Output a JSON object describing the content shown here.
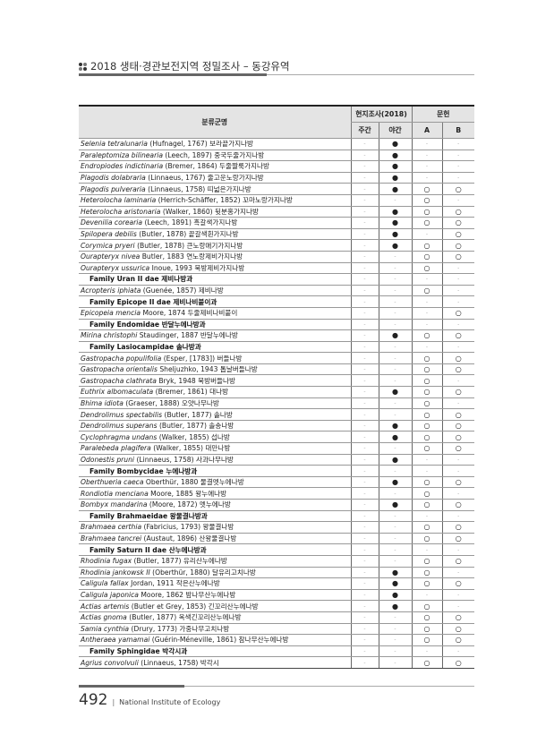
{
  "header": {
    "title": "2018 생태·경관보전지역  정밀조사 – 동강유역"
  },
  "table": {
    "col_name": "분류군명",
    "group_survey": "현지조사(2018)",
    "group_literature": "문헌",
    "col_day": "주간",
    "col_night": "야간",
    "col_a": "A",
    "col_b": "B",
    "rows": [
      {
        "sci": "Selenia tetralunaria",
        "auth": " (Hufnagel, 1767) 보라끝가지나방",
        "v": [
          "-",
          "●",
          "-",
          "-"
        ]
      },
      {
        "sci": "Paraleptomiza bilinearia",
        "auth": " (Leech, 1897) 중국두줄가지나방",
        "v": [
          "-",
          "●",
          "-",
          "-"
        ]
      },
      {
        "sci": "Endropiodes indictinaria",
        "auth": " (Bremer, 1864) 두줄짤룩가지나방",
        "v": [
          "-",
          "●",
          "-",
          "-"
        ]
      },
      {
        "sci": "Plagodis dolabraria",
        "auth": " (Linnaeus, 1767) 줄고운노랑가지나방",
        "v": [
          "-",
          "●",
          "-",
          "-"
        ]
      },
      {
        "sci": "Plagodis pulveraria",
        "auth": " (Linnaeus, 1758) 띠넓은가지나방",
        "v": [
          "-",
          "●",
          "○",
          "○"
        ]
      },
      {
        "sci": "Heterolocha laminaria",
        "auth": " (Herrich-Schäffer, 1852) 꼬마노랑가지나방",
        "v": [
          "-",
          "-",
          "○",
          "-"
        ]
      },
      {
        "sci": "Heterolocha aristonaria",
        "auth": " (Walker, 1860) 뒷분홍가지나방",
        "v": [
          "-",
          "●",
          "○",
          "○"
        ]
      },
      {
        "sci": "Devenilia corearia",
        "auth": " (Leech, 1891) 흑갈색가지나방",
        "v": [
          "-",
          "●",
          "○",
          "○"
        ]
      },
      {
        "sci": "Spilopera debilis",
        "auth": " (Butler, 1878) 끝갈색흰가지나방",
        "v": [
          "-",
          "●",
          "-",
          "○"
        ]
      },
      {
        "sci": "Corymica pryeri",
        "auth": " (Butler, 1878) 큰노랑애기가지나방",
        "v": [
          "-",
          "●",
          "○",
          "○"
        ]
      },
      {
        "sci": "Ourapteryx nivea",
        "auth": " Butler, 1883 연노랑제비가지나방",
        "v": [
          "-",
          "-",
          "○",
          "○"
        ]
      },
      {
        "sci": "Ourapteryx ussurica",
        "auth": " Inoue, 1993 북방제비가지나방",
        "v": [
          "-",
          "-",
          "○",
          "-"
        ]
      },
      {
        "family": "Family Uran II dae 제비나방과",
        "v": [
          "-",
          "-",
          "-",
          "-"
        ]
      },
      {
        "sci": "Acropteris iphiata",
        "auth": " (Guenée, 1857) 제비나방",
        "v": [
          "-",
          "-",
          "○",
          "-"
        ]
      },
      {
        "family": "Family Epicope II dae 제비나비붙이과",
        "v": [
          "-",
          "-",
          "-",
          "-"
        ]
      },
      {
        "sci": "Epicopeia mencia",
        "auth": " Moore, 1874 두줄제비나비붙이",
        "v": [
          "-",
          "-",
          "-",
          "○"
        ]
      },
      {
        "family": "Family Endomidae 반달누에나방과",
        "v": [
          "-",
          "-",
          "-",
          "-"
        ]
      },
      {
        "sci": "Mirina christophi",
        "auth": " Staudinger, 1887 반달누에나방",
        "v": [
          "-",
          "●",
          "○",
          "○"
        ]
      },
      {
        "family": "Family Lasiocampidae 솔나방과",
        "v": [
          "-",
          "-",
          "-",
          "-"
        ]
      },
      {
        "sci": "Gastropacha populifolia",
        "auth": " (Esper, [1783]) 버들나방",
        "v": [
          "-",
          "-",
          "○",
          "○"
        ]
      },
      {
        "sci": "Gastropacha orientalis",
        "auth": " Sheljuzhko, 1943 톱날버들나방",
        "v": [
          "-",
          "-",
          "○",
          "○"
        ]
      },
      {
        "sci": "Gastropacha clathrata",
        "auth": " Bryk, 1948 북방버들나방",
        "v": [
          "-",
          "-",
          "○",
          "-"
        ]
      },
      {
        "sci": "Euthrix albomaculata",
        "auth": " (Bremer, 1861) 대나방",
        "v": [
          "-",
          "●",
          "○",
          "○"
        ]
      },
      {
        "sci": "Bhima idiota",
        "auth": " (Graeser, 1888) 오얏나무나방",
        "v": [
          "-",
          "-",
          "○",
          "-"
        ]
      },
      {
        "sci": "Dendrolimus spectabilis",
        "auth": " (Butler, 1877) 솔나방",
        "v": [
          "-",
          "-",
          "○",
          "○"
        ]
      },
      {
        "sci": "Dendrolimus superans",
        "auth": " (Butler, 1877) 솔송나방",
        "v": [
          "-",
          "●",
          "○",
          "○"
        ]
      },
      {
        "sci": "Cyclophragma undans",
        "auth": " (Walker, 1855) 섭나방",
        "v": [
          "-",
          "●",
          "○",
          "○"
        ]
      },
      {
        "sci": "Paralebeda plagifera",
        "auth": " (Walker, 1855) 대만나방",
        "v": [
          "-",
          "-",
          "○",
          "○"
        ]
      },
      {
        "sci": "Odonestis pruni",
        "auth": " (Linnaeus, 1758) 사과나무나방",
        "v": [
          "-",
          "●",
          "-",
          "-"
        ]
      },
      {
        "family": "Family Bombycidae 누에나방과",
        "v": [
          "-",
          "-",
          "-",
          "-"
        ]
      },
      {
        "sci": "Oberthueria caeca",
        "auth": " Oberthür, 1880 물결멧누에나방",
        "v": [
          "-",
          "●",
          "○",
          "○"
        ]
      },
      {
        "sci": "Rondiotia menciana",
        "auth": " Moore, 1885 왕누에나방",
        "v": [
          "-",
          "-",
          "○",
          "-"
        ]
      },
      {
        "sci": "Bombyx mandarina",
        "auth": " (Moore, 1872) 멧누에나방",
        "v": [
          "-",
          "●",
          "○",
          "○"
        ]
      },
      {
        "family": "Family Brahmaeidae 왕물결나방과",
        "v": [
          "-",
          "-",
          "-",
          "-"
        ]
      },
      {
        "sci": "Brahmaea certhia",
        "auth": " (Fabricius, 1793) 왕물결나방",
        "v": [
          "-",
          "-",
          "○",
          "○"
        ]
      },
      {
        "sci": "Brahmaea tancrei",
        "auth": " (Austaut, 1896) 산왕물결나방",
        "v": [
          "-",
          "-",
          "○",
          "○"
        ]
      },
      {
        "family": "Family Saturn II dae 산누에나방과",
        "v": [
          "-",
          "-",
          "-",
          "-"
        ]
      },
      {
        "sci": "Rhodinia fugax",
        "auth": " (Butler, 1877) 유리산누에나방",
        "v": [
          "-",
          "-",
          "○",
          "○"
        ]
      },
      {
        "sci": "Rhodinia jankowsk II",
        "auth": " (Oberthür, 1880) 달유리고치나방",
        "v": [
          "-",
          "●",
          "○",
          "-"
        ]
      },
      {
        "sci": "Caligula fallax",
        "auth": " Jordan, 1911 작은산누에나방",
        "v": [
          "-",
          "●",
          "○",
          "○"
        ]
      },
      {
        "sci": "Caligula japonica",
        "auth": " Moore, 1862 밤나무산누에나방",
        "v": [
          "-",
          "●",
          "-",
          "-"
        ]
      },
      {
        "sci": "Actias artemis",
        "auth": " (Butler et Grey, 1853) 긴꼬리산누에나방",
        "v": [
          "-",
          "●",
          "○",
          "-"
        ]
      },
      {
        "sci": "Actias gnoma",
        "auth": " (Butler, 1877) 옥색긴꼬리산누에나방",
        "v": [
          "-",
          "-",
          "○",
          "○"
        ]
      },
      {
        "sci": "Samia cynthia",
        "auth": " (Drury, 1773) 가중나무고치나방",
        "v": [
          "-",
          "-",
          "○",
          "○"
        ]
      },
      {
        "sci": "Antheraea yamamai",
        "auth": " (Guérin-Méneville, 1861) 참나무산누에나방",
        "v": [
          "-",
          "-",
          "○",
          "○"
        ]
      },
      {
        "family": "Family Sphingidae 박각시과",
        "v": [
          "-",
          "-",
          "-",
          "-"
        ]
      },
      {
        "sci": "Agrius convolvuli",
        "auth": " (Linnaeus, 1758) 박각시",
        "v": [
          "-",
          "-",
          "○",
          "○"
        ]
      }
    ]
  },
  "footer": {
    "page_number": "492",
    "separator": "|",
    "organization": "National Institute of Ecology"
  }
}
